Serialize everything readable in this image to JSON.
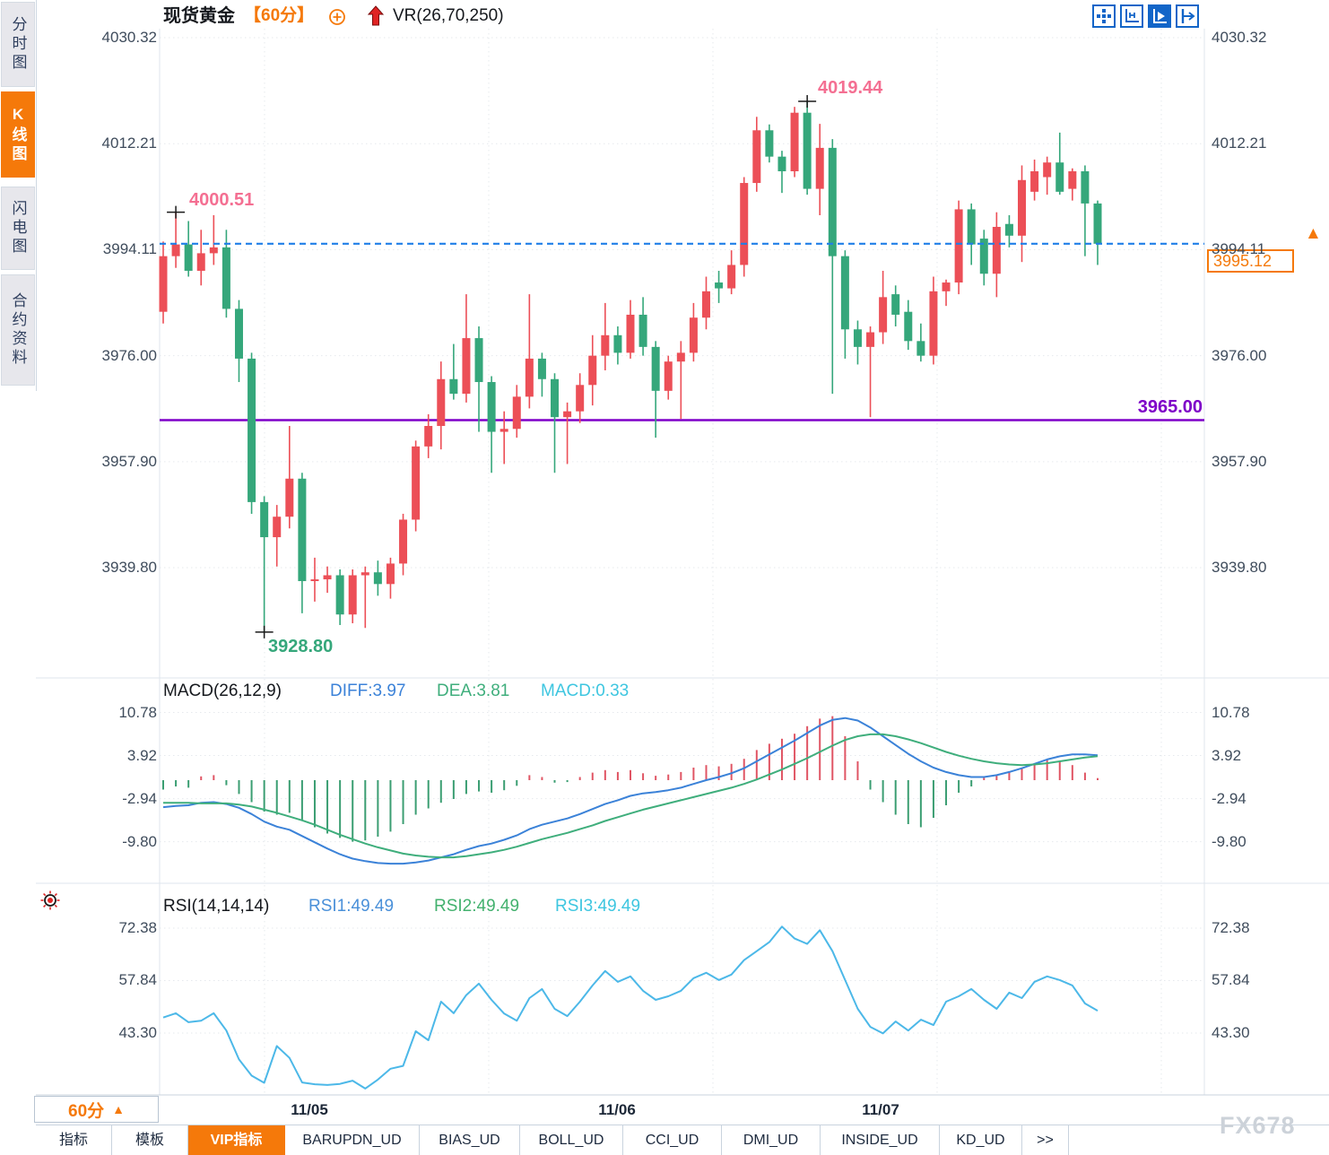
{
  "window": {
    "watermark": "FX678"
  },
  "sidebar": {
    "tabs": [
      {
        "label": "分时图",
        "active": false
      },
      {
        "label": "K线图",
        "active": true
      },
      {
        "label": "闪电图",
        "active": false
      },
      {
        "label": "合约资料",
        "active": false
      }
    ]
  },
  "header": {
    "symbol": "现货黄金",
    "period": "【60分】",
    "overlay_indicator": "VR(26,70,250)"
  },
  "toolbar": {
    "icons": [
      "crosshair-grid-icon",
      "axis-range-icon",
      "axis-play-icon",
      "pane-shift-icon"
    ],
    "active_icon": "axis-play-icon"
  },
  "current_price": {
    "label": "3995.12",
    "value": 3995.12
  },
  "levels": {
    "support_label": "3965.00",
    "support_value": 3965.0,
    "last_price_line": 3995.12
  },
  "annotations": {
    "swing_high_left": {
      "label": "4000.51",
      "value": 4000.51,
      "candle_index": 1
    },
    "swing_high_right": {
      "label": "4019.44",
      "value": 4019.44,
      "candle_index": 51
    },
    "swing_low": {
      "label": "3928.80",
      "value": 3928.8,
      "candle_index": 8
    }
  },
  "time_axis": {
    "period_label": "60分",
    "dates": [
      "11/05",
      "11/06",
      "11/07"
    ]
  },
  "bottom_tabs": {
    "items": [
      {
        "label": "指标",
        "active": false
      },
      {
        "label": "模板",
        "active": false
      },
      {
        "label": "VIP指标",
        "active": true
      },
      {
        "label": "BARUPDN_UD",
        "active": false
      },
      {
        "label": "BIAS_UD",
        "active": false
      },
      {
        "label": "BOLL_UD",
        "active": false
      },
      {
        "label": "CCI_UD",
        "active": false
      },
      {
        "label": "DMI_UD",
        "active": false
      },
      {
        "label": "INSIDE_UD",
        "active": false
      },
      {
        "label": "KD_UD",
        "active": false
      },
      {
        "label": ">>",
        "active": false
      }
    ]
  },
  "colors": {
    "up": "#ec4f57",
    "down": "#35a77b",
    "accent_orange": "#f5790a",
    "last_price_blue": "#1f7fe8",
    "support_purple": "#7e00c8",
    "diff_blue": "#3b82d8",
    "dea_green": "#3fae7c",
    "macd_cyan": "#3ec6e0",
    "rsi_line": "#4cb8e8",
    "annotation_pink": "#f46f92",
    "annotation_green": "#35a77b",
    "axis_text": "#3f4c5c"
  },
  "chart_data": [
    {
      "type": "candlestick",
      "symbol": "现货黄金",
      "interval": "60min",
      "y_axis_labels": [
        "4030.32",
        "4012.21",
        "3994.11",
        "3976.00",
        "3957.90",
        "3939.80"
      ],
      "y_axis_values": [
        4030.32,
        4012.21,
        3994.11,
        3976.0,
        3957.9,
        3939.8
      ],
      "ylim": [
        3920.9,
        4031.9
      ],
      "ohlc": [
        [
          3983.5,
          3995.5,
          3981.5,
          3993.0
        ],
        [
          3993.0,
          4000.51,
          3991.0,
          3995.0
        ],
        [
          3995.0,
          3999.0,
          3989.5,
          3990.5
        ],
        [
          3990.5,
          3997.5,
          3988.0,
          3993.5
        ],
        [
          3993.5,
          4000.0,
          3991.5,
          3994.5
        ],
        [
          3994.5,
          3997.5,
          3982.5,
          3984.0
        ],
        [
          3984.0,
          3985.5,
          3971.5,
          3975.5
        ],
        [
          3975.5,
          3976.5,
          3949.0,
          3951.0
        ],
        [
          3951.0,
          3952.0,
          3928.8,
          3945.0
        ],
        [
          3945.0,
          3950.5,
          3940.0,
          3948.5
        ],
        [
          3948.5,
          3964.0,
          3946.5,
          3955.0
        ],
        [
          3955.0,
          3956.0,
          3932.0,
          3937.5
        ],
        [
          3937.5,
          3941.5,
          3934.0,
          3937.8
        ],
        [
          3937.8,
          3940.0,
          3935.5,
          3938.5
        ],
        [
          3938.5,
          3939.5,
          3930.0,
          3931.8
        ],
        [
          3931.8,
          3939.5,
          3930.3,
          3938.5
        ],
        [
          3938.5,
          3940.0,
          3929.5,
          3939.0
        ],
        [
          3939.0,
          3941.0,
          3935.0,
          3937.0
        ],
        [
          3937.0,
          3941.5,
          3934.5,
          3940.5
        ],
        [
          3940.5,
          3949.0,
          3938.5,
          3948.0
        ],
        [
          3948.0,
          3961.5,
          3946.0,
          3960.5
        ],
        [
          3960.5,
          3966.0,
          3958.5,
          3964.0
        ],
        [
          3964.0,
          3975.0,
          3960.0,
          3972.0
        ],
        [
          3972.0,
          3978.0,
          3968.5,
          3969.5
        ],
        [
          3969.5,
          3986.5,
          3968.0,
          3979.0
        ],
        [
          3979.0,
          3981.0,
          3963.0,
          3971.5
        ],
        [
          3971.5,
          3972.5,
          3956.0,
          3963.0
        ],
        [
          3963.0,
          3966.5,
          3957.5,
          3963.5
        ],
        [
          3963.5,
          3971.0,
          3962.0,
          3969.0
        ],
        [
          3969.0,
          3986.5,
          3967.0,
          3975.5
        ],
        [
          3975.5,
          3976.5,
          3969.0,
          3972.0
        ],
        [
          3972.0,
          3973.0,
          3956.0,
          3965.5
        ],
        [
          3965.5,
          3968.0,
          3957.5,
          3966.5
        ],
        [
          3966.5,
          3973.0,
          3964.5,
          3971.0
        ],
        [
          3971.0,
          3979.5,
          3967.5,
          3976.0
        ],
        [
          3976.0,
          3985.0,
          3973.5,
          3979.5
        ],
        [
          3979.5,
          3981.0,
          3974.5,
          3976.5
        ],
        [
          3976.5,
          3985.5,
          3975.5,
          3983.0
        ],
        [
          3983.0,
          3986.0,
          3976.0,
          3977.5
        ],
        [
          3977.5,
          3978.5,
          3962.0,
          3970.0
        ],
        [
          3970.0,
          3976.0,
          3968.5,
          3975.0
        ],
        [
          3975.0,
          3978.5,
          3965.2,
          3976.5
        ],
        [
          3976.5,
          3985.0,
          3975.0,
          3982.5
        ],
        [
          3982.5,
          3989.5,
          3980.5,
          3987.0
        ],
        [
          3988.5,
          3990.5,
          3985.0,
          3987.5
        ],
        [
          3987.5,
          3994.0,
          3986.5,
          3991.5
        ],
        [
          3991.5,
          4006.5,
          3989.5,
          4005.5
        ],
        [
          4005.5,
          4016.8,
          4004.0,
          4014.5
        ],
        [
          4014.5,
          4015.5,
          4009.0,
          4010.0
        ],
        [
          4010.0,
          4011.0,
          4003.8,
          4007.5
        ],
        [
          4007.5,
          4018.5,
          4006.5,
          4017.5
        ],
        [
          4017.5,
          4019.44,
          4003.5,
          4004.5
        ],
        [
          4004.5,
          4015.6,
          4000.0,
          4011.5
        ],
        [
          4011.5,
          4013.0,
          3969.5,
          3993.0
        ],
        [
          3993.0,
          3994.0,
          3975.5,
          3980.5
        ],
        [
          3980.5,
          3982.0,
          3974.5,
          3977.5
        ],
        [
          3977.5,
          3981.0,
          3965.5,
          3980.0
        ],
        [
          3980.0,
          3990.5,
          3978.0,
          3986.0
        ],
        [
          3986.5,
          3988.0,
          3981.0,
          3983.0
        ],
        [
          3983.5,
          3985.5,
          3977.0,
          3978.5
        ],
        [
          3978.5,
          3981.5,
          3975.0,
          3976.0
        ],
        [
          3976.0,
          3989.5,
          3974.5,
          3987.0
        ],
        [
          3987.0,
          3989.0,
          3984.5,
          3988.5
        ],
        [
          3988.5,
          4002.5,
          3986.5,
          4001.0
        ],
        [
          4001.0,
          4002.0,
          3991.5,
          3995.0
        ],
        [
          3996.0,
          3997.5,
          3988.0,
          3990.0
        ],
        [
          3990.0,
          4000.5,
          3986.0,
          3998.0
        ],
        [
          3998.5,
          4000.0,
          3994.5,
          3996.5
        ],
        [
          3996.5,
          4008.5,
          3992.0,
          4006.0
        ],
        [
          4004.0,
          4009.5,
          4002.5,
          4007.5
        ],
        [
          4006.5,
          4010.0,
          4003.5,
          4009.0
        ],
        [
          4009.0,
          4014.1,
          4003.5,
          4004.0
        ],
        [
          4004.5,
          4008.0,
          4002.5,
          4007.5
        ],
        [
          4007.5,
          4008.5,
          3993.0,
          4002.0
        ],
        [
          4002.0,
          4002.5,
          3991.5,
          3995.12
        ]
      ]
    },
    {
      "type": "bar",
      "name": "MACD",
      "title": "MACD(26,12,9)",
      "legend": {
        "diff": "DIFF:3.97",
        "dea": "DEA:3.81",
        "macd": "MACD:0.33"
      },
      "y_axis_labels": [
        "10.78",
        "3.92",
        "-2.94",
        "-9.80"
      ],
      "y_axis_values": [
        10.78,
        3.92,
        -2.94,
        -9.8
      ],
      "histogram": [
        -1.5,
        -1.0,
        -1.2,
        0.6,
        0.8,
        -0.8,
        -2.2,
        -3.5,
        -5.0,
        -5.5,
        -5.2,
        -6.5,
        -7.5,
        -8.5,
        -9.2,
        -9.8,
        -9.6,
        -9.0,
        -8.2,
        -7.0,
        -5.5,
        -4.5,
        -3.6,
        -3.0,
        -2.2,
        -1.8,
        -2.0,
        -1.6,
        -0.9,
        0.8,
        0.5,
        -0.4,
        -0.3,
        0.5,
        1.2,
        1.6,
        1.3,
        1.6,
        1.1,
        0.7,
        0.9,
        1.3,
        2.0,
        2.4,
        2.2,
        2.6,
        3.4,
        4.8,
        5.8,
        6.6,
        7.4,
        8.6,
        9.8,
        10.2,
        7.0,
        3.0,
        -1.5,
        -3.5,
        -5.5,
        -7.0,
        -7.5,
        -6.0,
        -4.0,
        -2.0,
        -1.0,
        0.4,
        0.8,
        1.4,
        2.0,
        2.6,
        3.2,
        3.0,
        2.4,
        1.2,
        0.33
      ],
      "diff_line": [
        -4.3,
        -4.1,
        -4.0,
        -3.6,
        -3.5,
        -3.8,
        -4.4,
        -5.4,
        -6.6,
        -7.4,
        -7.9,
        -8.9,
        -9.9,
        -10.9,
        -11.8,
        -12.5,
        -12.9,
        -13.2,
        -13.3,
        -13.3,
        -13.1,
        -12.8,
        -12.3,
        -11.8,
        -11.1,
        -10.5,
        -10.1,
        -9.5,
        -8.8,
        -7.8,
        -7.1,
        -6.6,
        -6.1,
        -5.4,
        -4.6,
        -3.8,
        -3.2,
        -2.5,
        -2.1,
        -1.9,
        -1.6,
        -1.2,
        -0.6,
        0.0,
        0.5,
        1.1,
        1.9,
        3.0,
        4.1,
        5.2,
        6.3,
        7.5,
        8.7,
        9.6,
        9.9,
        9.5,
        8.4,
        7.0,
        5.6,
        4.2,
        3.0,
        2.0,
        1.3,
        0.8,
        0.5,
        0.5,
        0.8,
        1.3,
        1.9,
        2.6,
        3.3,
        3.8,
        4.1,
        4.1,
        3.97
      ],
      "dea_line": [
        -3.6,
        -3.6,
        -3.6,
        -3.7,
        -3.7,
        -3.7,
        -3.9,
        -4.2,
        -4.7,
        -5.2,
        -5.8,
        -6.4,
        -7.1,
        -7.9,
        -8.7,
        -9.4,
        -10.1,
        -10.7,
        -11.2,
        -11.7,
        -12.0,
        -12.2,
        -12.3,
        -12.3,
        -12.1,
        -11.8,
        -11.5,
        -11.1,
        -10.6,
        -10.0,
        -9.4,
        -8.9,
        -8.4,
        -7.8,
        -7.2,
        -6.5,
        -5.9,
        -5.3,
        -4.7,
        -4.2,
        -3.7,
        -3.2,
        -2.7,
        -2.2,
        -1.7,
        -1.2,
        -0.6,
        0.1,
        0.9,
        1.7,
        2.6,
        3.5,
        4.5,
        5.5,
        6.4,
        7.0,
        7.3,
        7.3,
        7.0,
        6.5,
        5.9,
        5.2,
        4.5,
        3.9,
        3.4,
        3.0,
        2.7,
        2.5,
        2.4,
        2.5,
        2.7,
        3.0,
        3.3,
        3.6,
        3.81
      ]
    },
    {
      "type": "line",
      "name": "RSI",
      "title": "RSI(14,14,14)",
      "legend": {
        "rsi1": "RSI1:49.49",
        "rsi2": "RSI2:49.49",
        "rsi3": "RSI3:49.49"
      },
      "y_axis_labels": [
        "72.38",
        "57.84",
        "43.30"
      ],
      "y_axis_values": [
        72.38,
        57.84,
        43.3
      ],
      "values": [
        47.6,
        48.8,
        46.3,
        46.7,
        48.8,
        44.0,
        36.0,
        31.5,
        29.5,
        39.7,
        36.4,
        29.6,
        29.1,
        28.9,
        29.2,
        30.1,
        27.9,
        30.4,
        33.4,
        34.2,
        43.8,
        41.3,
        52.0,
        48.8,
        53.8,
        57.0,
        52.5,
        48.7,
        46.7,
        53.0,
        55.5,
        50.0,
        48.0,
        52.0,
        56.5,
        60.5,
        57.5,
        59.0,
        55.0,
        52.5,
        53.5,
        55.0,
        58.5,
        60.0,
        58.0,
        59.5,
        63.5,
        66.0,
        68.5,
        72.8,
        69.5,
        68.0,
        71.8,
        66.0,
        58.0,
        50.0,
        45.0,
        43.2,
        46.5,
        44.0,
        47.0,
        45.5,
        52.0,
        53.5,
        55.5,
        52.5,
        50.0,
        54.5,
        53.0,
        57.5,
        59.0,
        58.0,
        56.5,
        51.5,
        49.49
      ]
    }
  ]
}
